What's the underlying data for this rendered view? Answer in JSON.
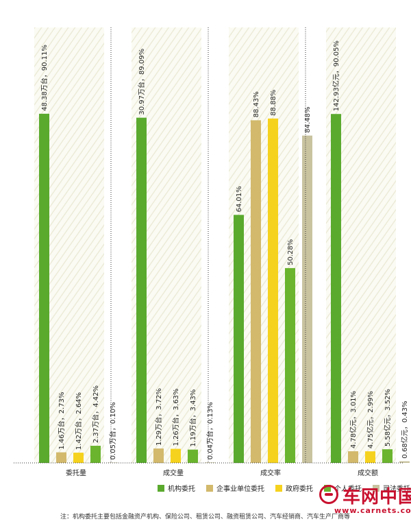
{
  "chart_data": {
    "type": "bar",
    "title": "",
    "ylim": [
      0,
      100
    ],
    "grid": false,
    "legend_placement": "bottom",
    "categories": [
      "委托量",
      "成交量",
      "成交率",
      "成交额"
    ],
    "series": [
      {
        "name": "机构委托",
        "color": "#5aaa2e",
        "values": [
          90.11,
          89.09,
          64.01,
          90.05
        ],
        "labels": [
          "48.38万台，90.11%",
          "30.97万台，89.09%",
          "64.01%",
          "142.93亿元，90.05%"
        ]
      },
      {
        "name": "企事业单位委托",
        "color": "#d2b96c",
        "values": [
          2.73,
          3.72,
          88.43,
          3.01
        ],
        "labels": [
          "1.46万台，2.73%",
          "1.29万台，3.72%",
          "88.43%",
          "4.78亿元，3.01%"
        ]
      },
      {
        "name": "政府委托",
        "color": "#f5d21e",
        "values": [
          2.64,
          3.63,
          88.88,
          2.99
        ],
        "labels": [
          "1.42万台，2.64%",
          "1.26万台，3.63%",
          "88.88%",
          "4.75亿元，2.99%"
        ]
      },
      {
        "name": "个人委托",
        "color": "#6ab42e",
        "values": [
          4.42,
          3.43,
          50.28,
          3.52
        ],
        "labels": [
          "2.37万台，4.42%",
          "1.19万台，3.43%",
          "50.28%",
          "5.58亿元，3.52%"
        ]
      },
      {
        "name": "司法委托",
        "color": "#c9c3a0",
        "values": [
          0.1,
          0.13,
          84.48,
          0.43
        ],
        "labels": [
          "0.05万台，0.10%",
          "0.04万台，0.13%",
          "84.48%",
          "0.68亿元，0.43%"
        ]
      }
    ]
  },
  "footnote": "注：机构委托主要包括金融资产机构、保险公司、租赁公司、融资租赁公司、汽车经销商、汽车生产厂商等",
  "watermark": {
    "brand": "车网中国",
    "url": "www.carnets.com"
  }
}
